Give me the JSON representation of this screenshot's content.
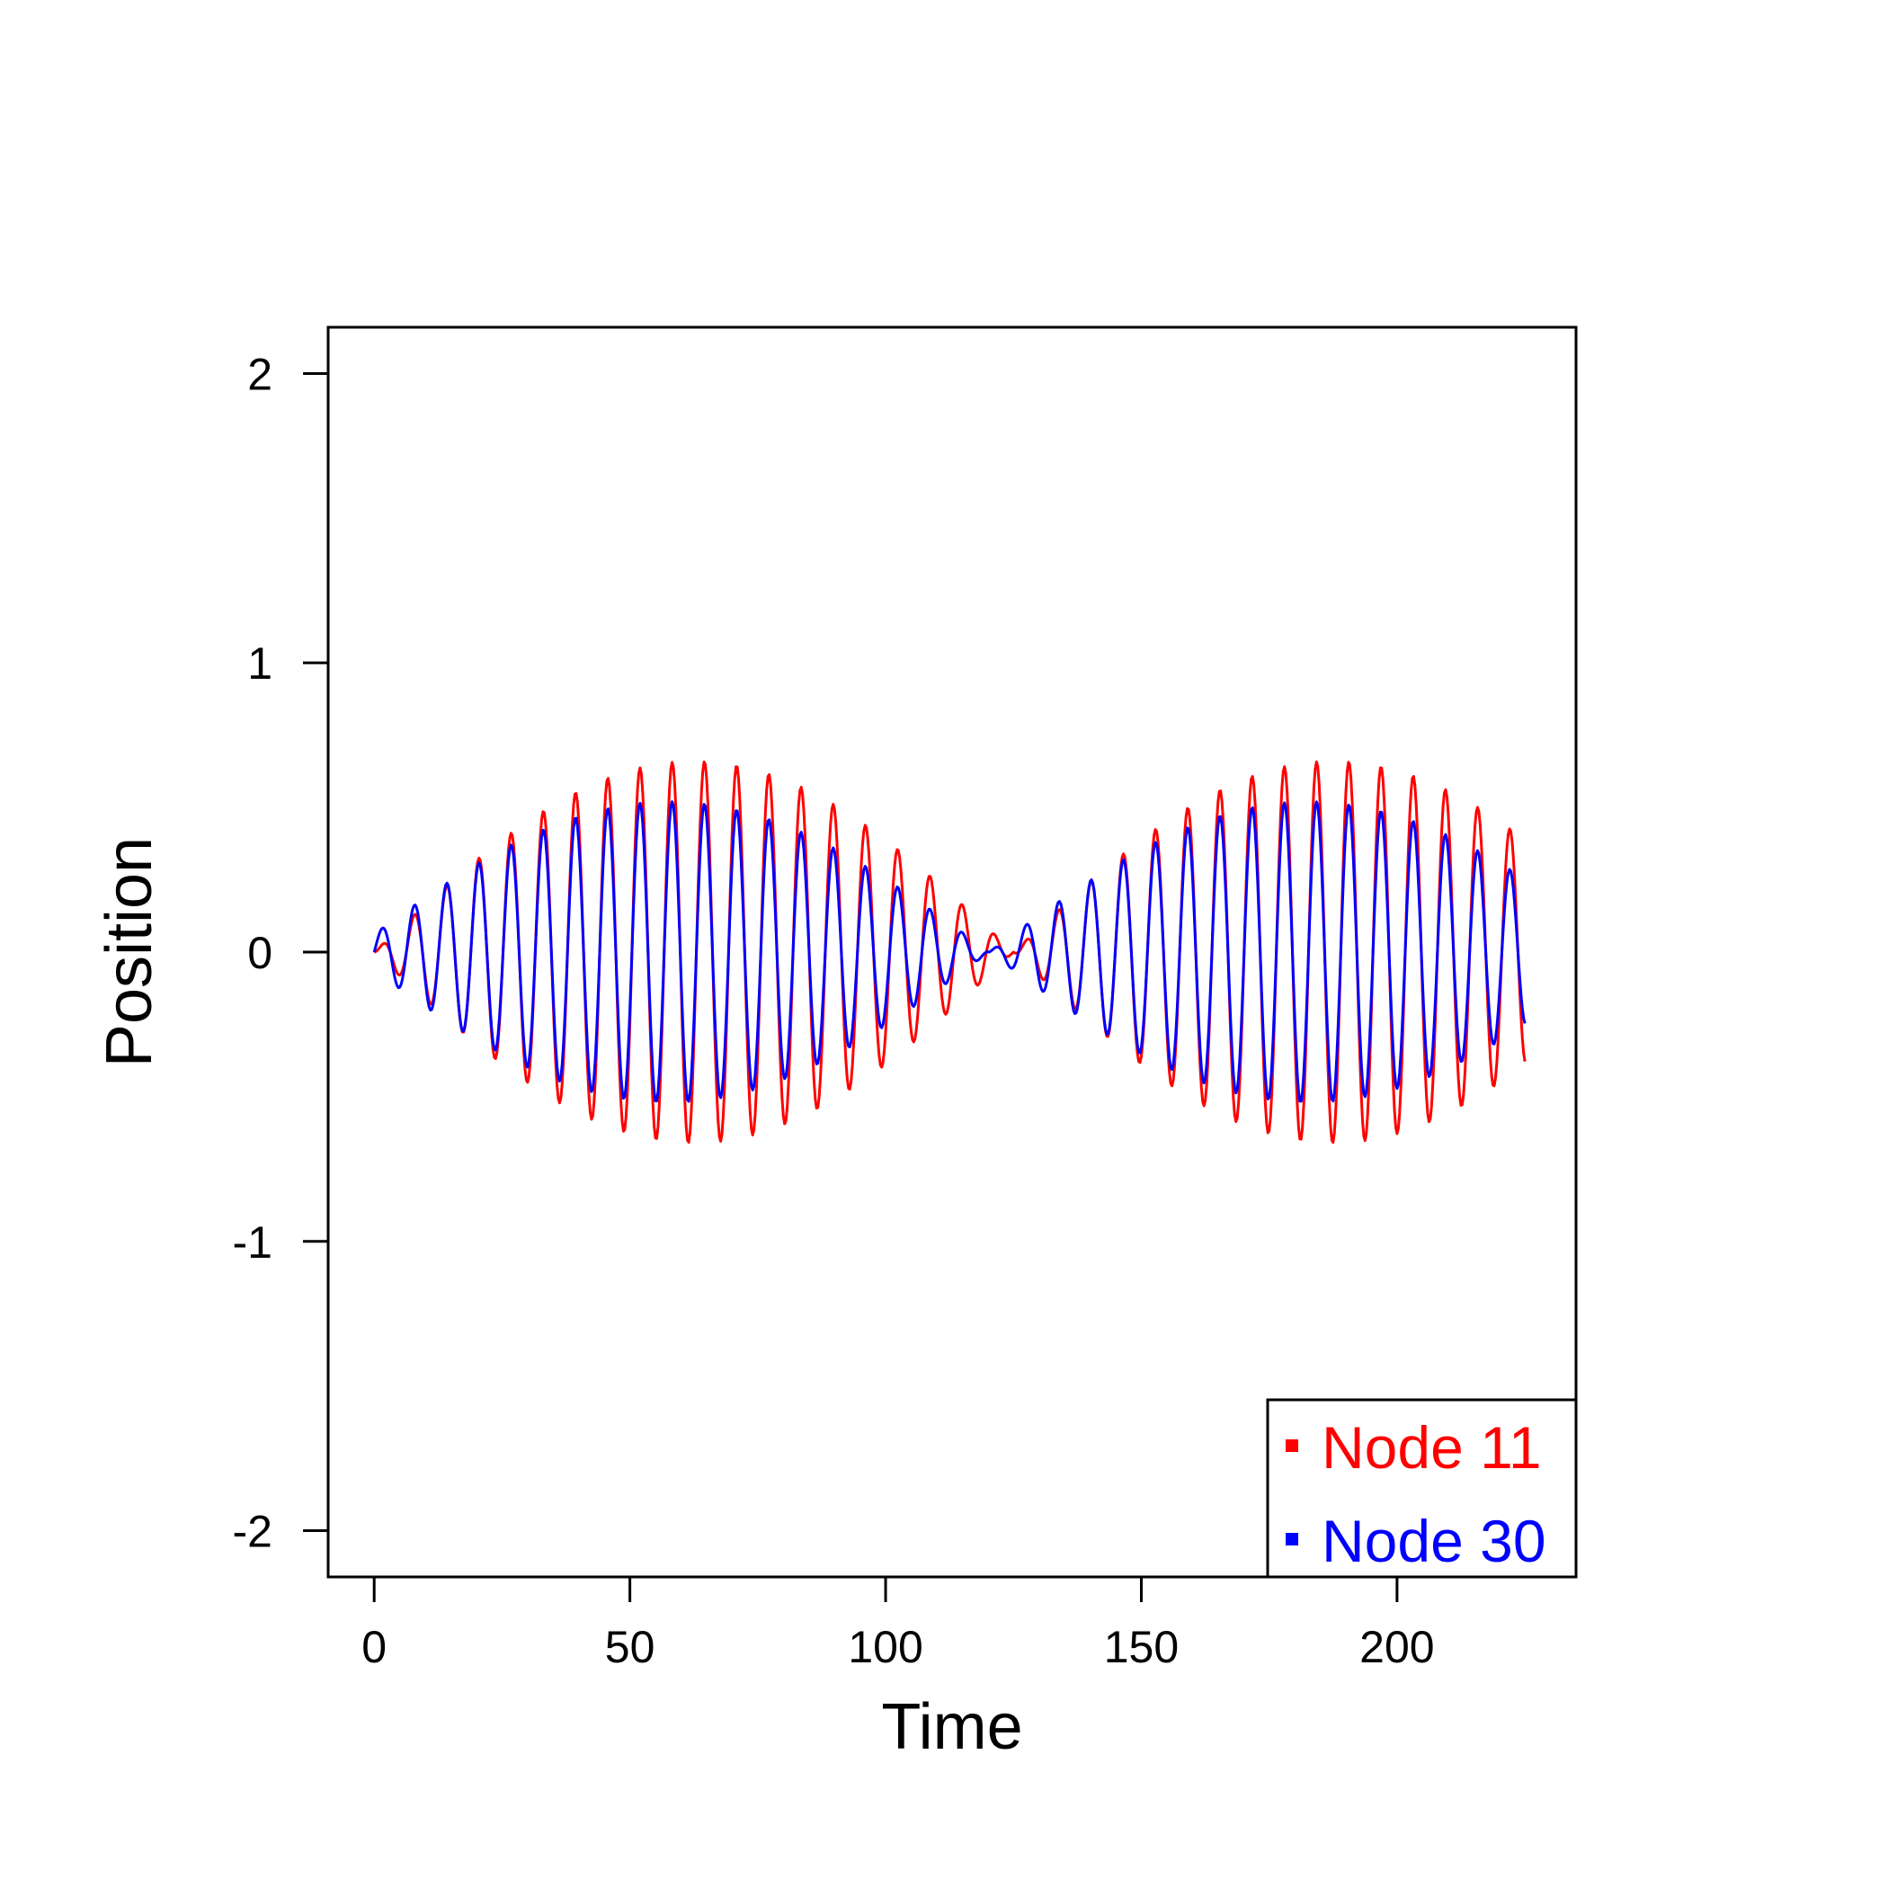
{
  "chart_data": {
    "type": "line",
    "title": "",
    "xlabel": "Time",
    "ylabel": "Position",
    "xlim": [
      -9,
      235
    ],
    "ylim": [
      -2.16,
      2.16
    ],
    "x_ticks": [
      0,
      50,
      100,
      150,
      200
    ],
    "y_ticks": [
      -2,
      -1,
      0,
      1,
      2
    ],
    "grid": false,
    "legend_position": "bottom-right",
    "series": [
      {
        "name": "Node 11",
        "color": "#ff0000",
        "x_range": [
          0,
          225
        ],
        "sample_step": 0.25,
        "carrier_period": 6.3,
        "beat_period": 125,
        "amplitude_scale": 0.66,
        "beat_phase": 0
      },
      {
        "name": "Node 30",
        "color": "#0000ff",
        "x_range": [
          0,
          225
        ],
        "sample_step": 0.25,
        "carrier_period": 6.3,
        "beat_period": 125,
        "amplitude_scale": 0.52,
        "beat_phase": 0.12
      }
    ]
  }
}
